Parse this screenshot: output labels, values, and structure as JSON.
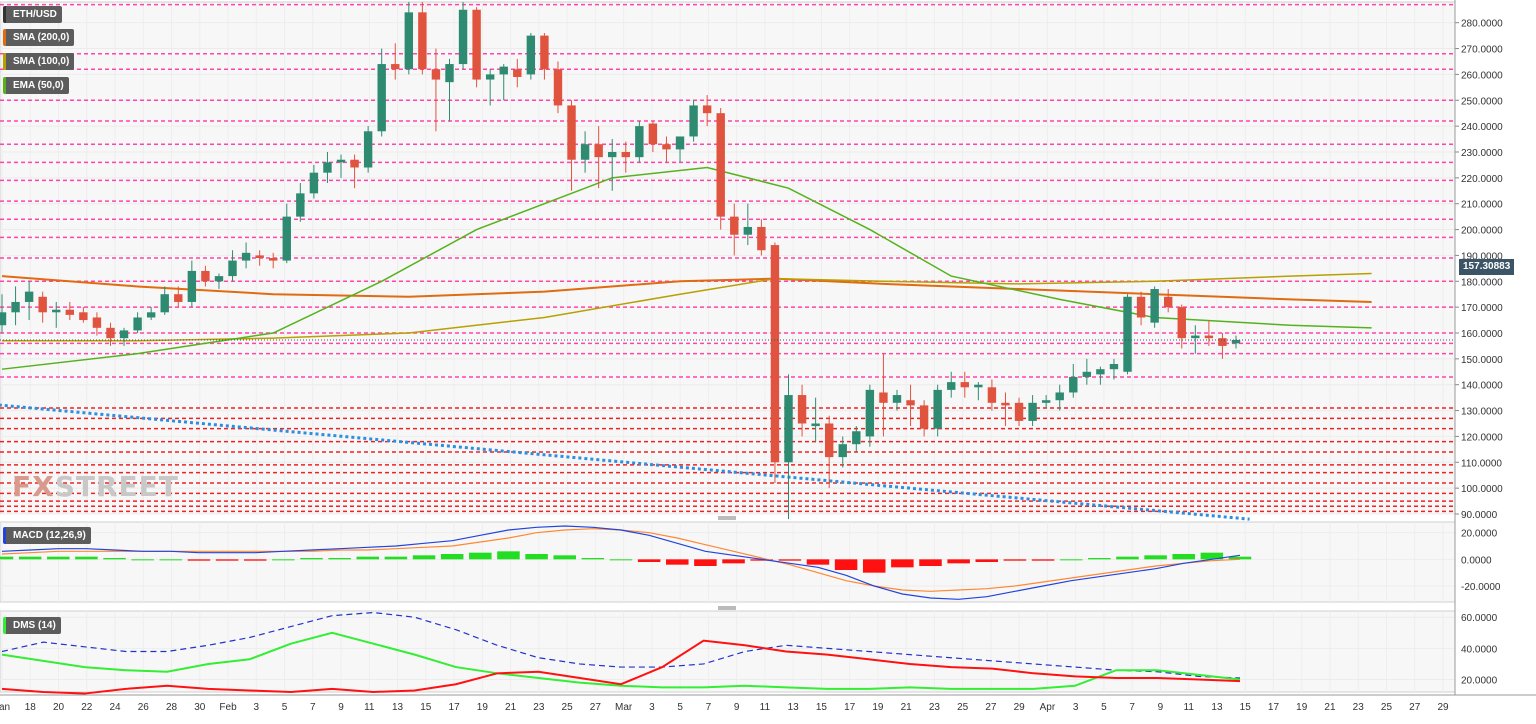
{
  "legend": {
    "symbol": "ETH/USD",
    "sma200": "SMA (200,0)",
    "sma100": "SMA (100,0)",
    "ema50": "EMA (50,0)",
    "macd": "MACD (12,26,9)",
    "dms": "DMS (14)"
  },
  "watermark": {
    "a": "FX",
    "b": "STREET"
  },
  "colors": {
    "up": "#2e8b72",
    "down": "#e0533f",
    "sma200": "#e06b10",
    "sma100": "#b8a000",
    "ema50": "#55b21c",
    "trend": "#2b8fe0",
    "level_pink": "#ff44aa",
    "level_red": "#ee2222",
    "macd_line": "#2244dd",
    "signal_line": "#ff8833",
    "hist_pos": "#22dd22",
    "hist_neg": "#ff1111",
    "dms_minus": "#ff1111",
    "dms_plus": "#33ee33",
    "adx": "#2233cc",
    "price_tag": "#3b5566"
  },
  "chart_data": [
    {
      "type": "candlestick",
      "title": "ETH/USD",
      "ylim": [
        90,
        288
      ],
      "y_ticks": [
        "90.0000",
        "100.0000",
        "110.0000",
        "120.0000",
        "130.0000",
        "140.0000",
        "150.0000",
        "160.0000",
        "170.0000",
        "180.0000",
        "190.0000",
        "200.0000",
        "210.0000",
        "220.0000",
        "230.0000",
        "240.0000",
        "250.0000",
        "260.0000",
        "270.0000",
        "280.0000"
      ],
      "last_price": "157.30883",
      "x_ticks": [
        "Jan",
        "18",
        "20",
        "22",
        "24",
        "26",
        "28",
        "30",
        "Feb",
        "3",
        "5",
        "7",
        "9",
        "11",
        "13",
        "15",
        "17",
        "19",
        "21",
        "23",
        "25",
        "27",
        "Mar",
        "3",
        "5",
        "7",
        "9",
        "11",
        "13",
        "15",
        "17",
        "19",
        "21",
        "23",
        "25",
        "27",
        "29",
        "Apr",
        "3",
        "5",
        "7",
        "9",
        "11",
        "13",
        "15",
        "17",
        "19",
        "21",
        "23",
        "25",
        "27",
        "29"
      ],
      "candles": [
        {
          "o": 163,
          "h": 175,
          "l": 160,
          "c": 168
        },
        {
          "o": 168,
          "h": 178,
          "l": 163,
          "c": 172
        },
        {
          "o": 172,
          "h": 180,
          "l": 165,
          "c": 176
        },
        {
          "o": 174,
          "h": 176,
          "l": 164,
          "c": 168
        },
        {
          "o": 168,
          "h": 172,
          "l": 162,
          "c": 169
        },
        {
          "o": 169,
          "h": 172,
          "l": 165,
          "c": 167
        },
        {
          "o": 168,
          "h": 170,
          "l": 164,
          "c": 165
        },
        {
          "o": 166,
          "h": 168,
          "l": 159,
          "c": 162
        },
        {
          "o": 162,
          "h": 164,
          "l": 155,
          "c": 158
        },
        {
          "o": 158,
          "h": 162,
          "l": 155,
          "c": 161
        },
        {
          "o": 161,
          "h": 168,
          "l": 160,
          "c": 166
        },
        {
          "o": 166,
          "h": 170,
          "l": 165,
          "c": 168
        },
        {
          "o": 168,
          "h": 178,
          "l": 167,
          "c": 175
        },
        {
          "o": 175,
          "h": 178,
          "l": 170,
          "c": 172
        },
        {
          "o": 172,
          "h": 188,
          "l": 170,
          "c": 184
        },
        {
          "o": 184,
          "h": 186,
          "l": 178,
          "c": 180
        },
        {
          "o": 180,
          "h": 183,
          "l": 177,
          "c": 182
        },
        {
          "o": 182,
          "h": 192,
          "l": 180,
          "c": 188
        },
        {
          "o": 188,
          "h": 195,
          "l": 185,
          "c": 191
        },
        {
          "o": 190,
          "h": 192,
          "l": 186,
          "c": 189
        },
        {
          "o": 189,
          "h": 191,
          "l": 185,
          "c": 188
        },
        {
          "o": 188,
          "h": 210,
          "l": 187,
          "c": 205
        },
        {
          "o": 205,
          "h": 218,
          "l": 203,
          "c": 214
        },
        {
          "o": 214,
          "h": 225,
          "l": 212,
          "c": 222
        },
        {
          "o": 222,
          "h": 230,
          "l": 218,
          "c": 226
        },
        {
          "o": 226,
          "h": 229,
          "l": 220,
          "c": 227
        },
        {
          "o": 227,
          "h": 229,
          "l": 216,
          "c": 224
        },
        {
          "o": 224,
          "h": 240,
          "l": 222,
          "c": 238
        },
        {
          "o": 238,
          "h": 270,
          "l": 236,
          "c": 264
        },
        {
          "o": 264,
          "h": 272,
          "l": 258,
          "c": 262
        },
        {
          "o": 262,
          "h": 288,
          "l": 260,
          "c": 284
        },
        {
          "o": 284,
          "h": 288,
          "l": 260,
          "c": 262
        },
        {
          "o": 262,
          "h": 270,
          "l": 238,
          "c": 258
        },
        {
          "o": 257,
          "h": 266,
          "l": 242,
          "c": 264
        },
        {
          "o": 264,
          "h": 288,
          "l": 262,
          "c": 285
        },
        {
          "o": 285,
          "h": 286,
          "l": 255,
          "c": 258
        },
        {
          "o": 258,
          "h": 262,
          "l": 248,
          "c": 260
        },
        {
          "o": 260,
          "h": 264,
          "l": 250,
          "c": 263
        },
        {
          "o": 262,
          "h": 266,
          "l": 255,
          "c": 259
        },
        {
          "o": 260,
          "h": 276,
          "l": 258,
          "c": 275
        },
        {
          "o": 275,
          "h": 276,
          "l": 258,
          "c": 262
        },
        {
          "o": 262,
          "h": 265,
          "l": 245,
          "c": 248
        },
        {
          "o": 248,
          "h": 250,
          "l": 215,
          "c": 227
        },
        {
          "o": 227,
          "h": 238,
          "l": 222,
          "c": 233
        },
        {
          "o": 233,
          "h": 240,
          "l": 216,
          "c": 228
        },
        {
          "o": 228,
          "h": 235,
          "l": 215,
          "c": 230
        },
        {
          "o": 230,
          "h": 234,
          "l": 222,
          "c": 228
        },
        {
          "o": 228,
          "h": 242,
          "l": 226,
          "c": 240
        },
        {
          "o": 241,
          "h": 242,
          "l": 230,
          "c": 233
        },
        {
          "o": 233,
          "h": 236,
          "l": 226,
          "c": 231
        },
        {
          "o": 231,
          "h": 235,
          "l": 226,
          "c": 236
        },
        {
          "o": 236,
          "h": 250,
          "l": 234,
          "c": 248
        },
        {
          "o": 248,
          "h": 252,
          "l": 240,
          "c": 245
        },
        {
          "o": 245,
          "h": 247,
          "l": 200,
          "c": 205
        },
        {
          "o": 205,
          "h": 210,
          "l": 190,
          "c": 198
        },
        {
          "o": 198,
          "h": 210,
          "l": 194,
          "c": 201
        },
        {
          "o": 201,
          "h": 204,
          "l": 190,
          "c": 192
        },
        {
          "o": 194,
          "h": 195,
          "l": 102,
          "c": 110
        },
        {
          "o": 110,
          "h": 144,
          "l": 88,
          "c": 136
        },
        {
          "o": 136,
          "h": 140,
          "l": 120,
          "c": 125
        },
        {
          "o": 124,
          "h": 135,
          "l": 118,
          "c": 125
        },
        {
          "o": 125,
          "h": 128,
          "l": 100,
          "c": 112
        },
        {
          "o": 112,
          "h": 120,
          "l": 108,
          "c": 117
        },
        {
          "o": 117,
          "h": 124,
          "l": 114,
          "c": 122
        },
        {
          "o": 120,
          "h": 140,
          "l": 116,
          "c": 138
        },
        {
          "o": 137,
          "h": 152,
          "l": 120,
          "c": 133
        },
        {
          "o": 133,
          "h": 138,
          "l": 130,
          "c": 136
        },
        {
          "o": 134,
          "h": 140,
          "l": 124,
          "c": 132
        },
        {
          "o": 132,
          "h": 134,
          "l": 120,
          "c": 123
        },
        {
          "o": 123,
          "h": 140,
          "l": 120,
          "c": 138
        },
        {
          "o": 138,
          "h": 145,
          "l": 135,
          "c": 141
        },
        {
          "o": 141,
          "h": 145,
          "l": 135,
          "c": 139
        },
        {
          "o": 139,
          "h": 141,
          "l": 134,
          "c": 140
        },
        {
          "o": 139,
          "h": 142,
          "l": 130,
          "c": 133
        },
        {
          "o": 133,
          "h": 137,
          "l": 124,
          "c": 132
        },
        {
          "o": 133,
          "h": 135,
          "l": 124,
          "c": 126
        },
        {
          "o": 126,
          "h": 136,
          "l": 124,
          "c": 133
        },
        {
          "o": 133,
          "h": 136,
          "l": 131,
          "c": 134
        },
        {
          "o": 134,
          "h": 140,
          "l": 130,
          "c": 137
        },
        {
          "o": 137,
          "h": 148,
          "l": 135,
          "c": 143
        },
        {
          "o": 143,
          "h": 150,
          "l": 140,
          "c": 145
        },
        {
          "o": 144,
          "h": 147,
          "l": 140,
          "c": 146
        },
        {
          "o": 146,
          "h": 150,
          "l": 142,
          "c": 148
        },
        {
          "o": 145,
          "h": 175,
          "l": 144,
          "c": 174
        },
        {
          "o": 174,
          "h": 176,
          "l": 163,
          "c": 166
        },
        {
          "o": 164,
          "h": 178,
          "l": 162,
          "c": 177
        },
        {
          "o": 174,
          "h": 177,
          "l": 168,
          "c": 170
        },
        {
          "o": 170,
          "h": 171,
          "l": 154,
          "c": 158
        },
        {
          "o": 158,
          "h": 163,
          "l": 152,
          "c": 159
        },
        {
          "o": 159,
          "h": 165,
          "l": 155,
          "c": 158
        },
        {
          "o": 158,
          "h": 160,
          "l": 150,
          "c": 155
        },
        {
          "o": 156,
          "h": 159,
          "l": 154,
          "c": 157.3
        }
      ],
      "sma200": [
        [
          0,
          182
        ],
        [
          10,
          178
        ],
        [
          20,
          175
        ],
        [
          30,
          174
        ],
        [
          40,
          176
        ],
        [
          50,
          180
        ],
        [
          57,
          181
        ],
        [
          65,
          179
        ],
        [
          75,
          177
        ],
        [
          85,
          175
        ],
        [
          95,
          173
        ],
        [
          101,
          172
        ]
      ],
      "sma100": [
        [
          0,
          157
        ],
        [
          10,
          157
        ],
        [
          20,
          158
        ],
        [
          30,
          160
        ],
        [
          40,
          166
        ],
        [
          50,
          175
        ],
        [
          57,
          181
        ],
        [
          65,
          180
        ],
        [
          75,
          179
        ],
        [
          85,
          180
        ],
        [
          95,
          182
        ],
        [
          101,
          183
        ]
      ],
      "ema50": [
        [
          0,
          146
        ],
        [
          10,
          152
        ],
        [
          20,
          160
        ],
        [
          28,
          180
        ],
        [
          35,
          200
        ],
        [
          45,
          220
        ],
        [
          52,
          224
        ],
        [
          58,
          216
        ],
        [
          64,
          200
        ],
        [
          70,
          182
        ],
        [
          78,
          173
        ],
        [
          85,
          166
        ],
        [
          95,
          163
        ],
        [
          101,
          162
        ]
      ],
      "levels_pink": [
        287,
        268,
        262,
        250,
        242,
        233,
        226,
        219,
        211,
        204,
        197,
        189,
        180,
        170,
        160,
        156,
        152,
        143
      ],
      "levels_red": [
        131,
        127,
        123,
        118,
        114,
        109,
        106,
        102,
        98,
        95,
        93,
        91
      ],
      "trend_line": {
        "from": [
          -2,
          133
        ],
        "to": [
          92,
          88
        ]
      }
    },
    {
      "type": "line",
      "title": "MACD (12,26,9)",
      "ylim": [
        -32,
        28
      ],
      "y_ticks": [
        "-20.0000",
        "0.0000",
        "20.0000"
      ],
      "macd": [
        6,
        7,
        8,
        8,
        7,
        6,
        6,
        5,
        5,
        5,
        6,
        7,
        8,
        9,
        10,
        12,
        14,
        18,
        22,
        24,
        25,
        24,
        22,
        18,
        12,
        6,
        3,
        0,
        -3,
        -6,
        -12,
        -20,
        -26,
        -29,
        -30,
        -28,
        -24,
        -20,
        -16,
        -13,
        -10,
        -7,
        -3,
        0,
        3
      ],
      "signal": [
        4,
        5,
        6,
        6,
        6,
        6,
        6,
        6,
        6,
        6,
        6,
        6,
        7,
        7,
        8,
        9,
        10,
        13,
        16,
        20,
        22,
        23,
        22,
        20,
        16,
        11,
        6,
        1,
        -4,
        -10,
        -16,
        -20,
        -23,
        -24,
        -23,
        -22,
        -20,
        -17,
        -14,
        -11,
        -8,
        -5,
        -3,
        -1,
        0
      ],
      "histogram": [
        2,
        2,
        2,
        2,
        1,
        0,
        0,
        -1,
        -1,
        -1,
        0,
        1,
        1,
        2,
        2,
        3,
        4,
        5,
        6,
        4,
        3,
        1,
        0,
        -2,
        -4,
        -5,
        -3,
        -1,
        -1,
        -4,
        -8,
        -10,
        -6,
        -5,
        -3,
        -2,
        -1,
        -1,
        0,
        1,
        2,
        3,
        4,
        5,
        2
      ]
    },
    {
      "type": "line",
      "title": "DMS (14)",
      "ylim": [
        12,
        64
      ],
      "y_ticks": [
        "20.0000",
        "40.0000",
        "60.0000"
      ],
      "adx": [
        38,
        44,
        41,
        38,
        38,
        42,
        47,
        54,
        61,
        63,
        60,
        52,
        42,
        34,
        30,
        28,
        28,
        30,
        38,
        42,
        40,
        38,
        36,
        34,
        32,
        30,
        28,
        26,
        25,
        22,
        21
      ],
      "plus_di": [
        36,
        32,
        28,
        26,
        25,
        30,
        33,
        43,
        50,
        43,
        36,
        28,
        24,
        21,
        18,
        16,
        15,
        15,
        16,
        15,
        14,
        14,
        15,
        14,
        14,
        14,
        16,
        26,
        26,
        23,
        20
      ],
      "minus_di": [
        14,
        12,
        11,
        14,
        16,
        14,
        13,
        12,
        14,
        12,
        13,
        17,
        24,
        25,
        21,
        17,
        28,
        45,
        42,
        38,
        36,
        33,
        30,
        28,
        27,
        24,
        22,
        21,
        21,
        20,
        19
      ]
    }
  ]
}
